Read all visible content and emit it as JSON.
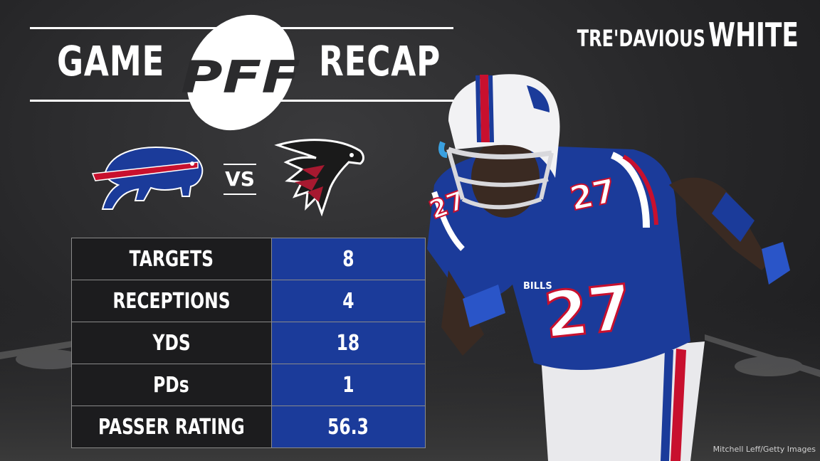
{
  "header": {
    "word_left": "GAME",
    "logo_text": "PFF",
    "word_right": "RECAP"
  },
  "player": {
    "first": "TRE'DAVIOUS",
    "last": "WHITE",
    "jersey_number": "27",
    "chest_text": "BILLS"
  },
  "matchup": {
    "home_logo": "bills-logo",
    "vs_label": "VS",
    "away_logo": "falcons-logo"
  },
  "stats": [
    {
      "label": "TARGETS",
      "value": "8"
    },
    {
      "label": "RECEPTIONS",
      "value": "4"
    },
    {
      "label": "YDS",
      "value": "18"
    },
    {
      "label": "PDs",
      "value": "1"
    },
    {
      "label": "PASSER RATING",
      "value": "56.3"
    }
  ],
  "credit": "Mitchell Leff/Getty Images",
  "colors": {
    "bills_blue": "#1b3b9a",
    "bills_red": "#c8102e",
    "falcons_red": "#a71930",
    "panel_dark": "#1c1c1e"
  }
}
